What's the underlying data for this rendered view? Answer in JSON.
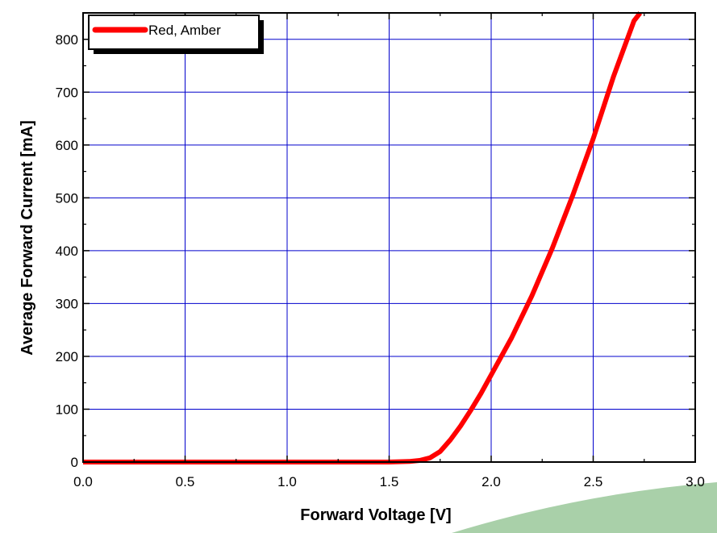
{
  "chart_data": {
    "type": "line",
    "title": "",
    "xlabel": "Forward Voltage [V]",
    "ylabel": "Average Forward Current [mA]",
    "xlim": [
      0.0,
      3.0
    ],
    "ylim": [
      0,
      850
    ],
    "x_ticks": [
      0.0,
      0.5,
      1.0,
      1.5,
      2.0,
      2.5,
      3.0
    ],
    "x_tick_labels": [
      "0.0",
      "0.5",
      "1.0",
      "1.5",
      "2.0",
      "2.5",
      "3.0"
    ],
    "y_ticks": [
      0,
      100,
      200,
      300,
      400,
      500,
      600,
      700,
      800
    ],
    "y_tick_labels": [
      "0",
      "100",
      "200",
      "300",
      "400",
      "500",
      "600",
      "700",
      "800"
    ],
    "grid": true,
    "legend_position": "top-left",
    "colors": {
      "series": "#ff0000",
      "grid": "#0000cc",
      "axis": "#000000"
    },
    "series": [
      {
        "name": "Red, Amber",
        "x": [
          0.0,
          0.5,
          1.0,
          1.5,
          1.6,
          1.65,
          1.7,
          1.75,
          1.8,
          1.85,
          1.9,
          1.95,
          2.0,
          2.1,
          2.2,
          2.3,
          2.4,
          2.5,
          2.6,
          2.7,
          2.73
        ],
        "y": [
          0,
          0,
          0,
          0,
          1,
          3,
          8,
          20,
          42,
          68,
          98,
          130,
          165,
          235,
          315,
          405,
          505,
          612,
          730,
          835,
          850
        ]
      }
    ]
  }
}
